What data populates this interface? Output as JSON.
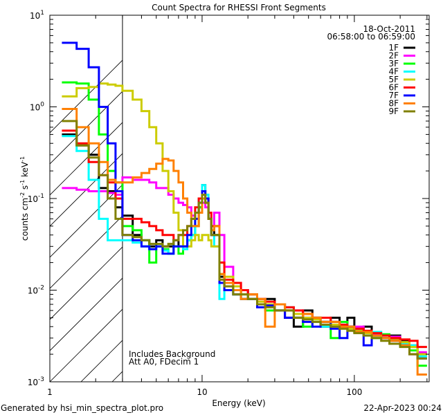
{
  "chart_data": {
    "type": "line",
    "title": "Count Spectra for RHESSI Front Segments",
    "xlabel": "Energy (keV)",
    "ylabel": "counts cm",
    "ylabel_parts": [
      "counts cm",
      "-2",
      " s",
      "-1",
      " keV",
      "-1"
    ],
    "xscale": "log",
    "yscale": "log",
    "xlim": [
      1,
      310
    ],
    "ylim": [
      0.001,
      10
    ],
    "x_ticks": [
      {
        "value": 1,
        "label": "1"
      },
      {
        "value": 10,
        "label": "10"
      },
      {
        "value": 100,
        "label": "100"
      }
    ],
    "y_ticks": [
      {
        "value": 10,
        "base": "10",
        "exp": "1"
      },
      {
        "value": 1,
        "base": "10",
        "exp": "0"
      },
      {
        "value": 0.1,
        "base": "10",
        "exp": "-1"
      },
      {
        "value": 0.01,
        "base": "10",
        "exp": "-2"
      },
      {
        "value": 0.001,
        "base": "10",
        "exp": "-3"
      }
    ],
    "hatched_region_keV": [
      1,
      3
    ],
    "legend_placement": "top-right",
    "date": "18-Oct-2011",
    "time_range": "06:58:00 to 06:59:00",
    "annotations": [
      "Includes Background",
      "Att A0, FDecim 1"
    ],
    "energy_edges": [
      1.2,
      1.5,
      1.8,
      2.1,
      2.4,
      2.7,
      3.0,
      3.5,
      4,
      4.5,
      5,
      5.5,
      6,
      6.5,
      7,
      7.5,
      8,
      8.5,
      9,
      9.5,
      10,
      10.5,
      11,
      11.5,
      12,
      13,
      14,
      16,
      18,
      20,
      23,
      26,
      30,
      35,
      40,
      46,
      53,
      60,
      70,
      80,
      90,
      100,
      115,
      130,
      150,
      170,
      200,
      230,
      260,
      300
    ],
    "series": [
      {
        "name": "1F",
        "color": "#000000",
        "values": [
          0.5,
          0.38,
          0.3,
          0.13,
          0.12,
          0.08,
          0.065,
          0.04,
          0.035,
          0.03,
          0.035,
          0.03,
          0.03,
          0.035,
          0.03,
          0.03,
          0.035,
          0.04,
          0.05,
          0.08,
          0.14,
          0.1,
          0.06,
          0.04,
          0.05,
          0.014,
          0.012,
          0.009,
          0.01,
          0.008,
          0.007,
          0.008,
          0.006,
          0.005,
          0.004,
          0.006,
          0.005,
          0.004,
          0.005,
          0.004,
          0.005,
          0.0038,
          0.004,
          0.0032,
          0.003,
          0.0032,
          0.0028,
          0.0024,
          0.002
        ]
      },
      {
        "name": "2F",
        "color": "#ff00ff",
        "values": [
          0.13,
          0.125,
          0.12,
          0.12,
          0.115,
          0.11,
          0.17,
          0.16,
          0.16,
          0.15,
          0.13,
          0.13,
          0.11,
          0.1,
          0.09,
          0.085,
          0.08,
          0.065,
          0.07,
          0.08,
          0.09,
          0.08,
          0.06,
          0.05,
          0.07,
          0.04,
          0.018,
          0.012,
          0.01,
          0.009,
          0.008,
          0.007,
          0.007,
          0.006,
          0.006,
          0.005,
          0.005,
          0.0045,
          0.0045,
          0.004,
          0.004,
          0.004,
          0.0035,
          0.0033,
          0.003,
          0.0031,
          0.0027,
          0.0025,
          0.0021
        ]
      },
      {
        "name": "3F",
        "color": "#00ff00",
        "values": [
          1.85,
          1.8,
          1.2,
          0.5,
          0.2,
          0.15,
          0.05,
          0.045,
          0.035,
          0.02,
          0.03,
          0.028,
          0.025,
          0.03,
          0.025,
          0.03,
          0.035,
          0.04,
          0.05,
          0.08,
          0.12,
          0.09,
          0.06,
          0.04,
          0.04,
          0.015,
          0.011,
          0.01,
          0.008,
          0.009,
          0.007,
          0.006,
          0.007,
          0.006,
          0.005,
          0.004,
          0.005,
          0.0045,
          0.003,
          0.0045,
          0.004,
          0.0035,
          0.0035,
          0.003,
          0.0033,
          0.0029,
          0.0027,
          0.0022,
          0.0015
        ]
      },
      {
        "name": "4F",
        "color": "#00ffff",
        "values": [
          0.48,
          0.33,
          0.16,
          0.06,
          0.035,
          0.035,
          0.035,
          0.033,
          0.03,
          0.028,
          0.03,
          0.027,
          0.025,
          0.03,
          0.03,
          0.028,
          0.035,
          0.04,
          0.06,
          0.1,
          0.14,
          0.11,
          0.06,
          0.04,
          0.03,
          0.008,
          0.011,
          0.009,
          0.009,
          0.008,
          0.007,
          0.007,
          0.006,
          0.0065,
          0.005,
          0.005,
          0.0045,
          0.004,
          0.0045,
          0.0042,
          0.0038,
          0.0036,
          0.0032,
          0.0035,
          0.003,
          0.0028,
          0.0026,
          0.0025,
          0.0019
        ]
      },
      {
        "name": "5F",
        "color": "#cccc00",
        "values": [
          1.3,
          1.6,
          1.65,
          1.8,
          1.75,
          1.7,
          1.5,
          1.2,
          0.9,
          0.6,
          0.4,
          0.2,
          0.12,
          0.07,
          0.045,
          0.03,
          0.03,
          0.035,
          0.04,
          0.035,
          0.04,
          0.04,
          0.035,
          0.03,
          0.03,
          0.02,
          0.014,
          0.011,
          0.009,
          0.008,
          0.0075,
          0.007,
          0.006,
          0.006,
          0.0055,
          0.005,
          0.0048,
          0.0045,
          0.0042,
          0.004,
          0.0038,
          0.0036,
          0.0034,
          0.0032,
          0.003,
          0.0029,
          0.0027,
          0.0024,
          0.002
        ]
      },
      {
        "name": "6F",
        "color": "#ff0000",
        "values": [
          0.55,
          0.4,
          0.25,
          0.18,
          0.15,
          0.1,
          0.06,
          0.06,
          0.055,
          0.05,
          0.045,
          0.04,
          0.04,
          0.035,
          0.04,
          0.04,
          0.05,
          0.06,
          0.08,
          0.1,
          0.12,
          0.1,
          0.07,
          0.05,
          0.05,
          0.02,
          0.013,
          0.012,
          0.01,
          0.009,
          0.008,
          0.0075,
          0.007,
          0.0065,
          0.006,
          0.0055,
          0.005,
          0.005,
          0.0045,
          0.0042,
          0.004,
          0.0038,
          0.0036,
          0.0034,
          0.0032,
          0.003,
          0.0029,
          0.0028,
          0.0024
        ]
      },
      {
        "name": "7F",
        "color": "#0000ff",
        "values": [
          5,
          4.3,
          2.7,
          1.0,
          0.4,
          0.12,
          0.04,
          0.035,
          0.03,
          0.028,
          0.03,
          0.025,
          0.025,
          0.03,
          0.03,
          0.03,
          0.04,
          0.05,
          0.06,
          0.09,
          0.12,
          0.1,
          0.06,
          0.04,
          0.04,
          0.012,
          0.01,
          0.009,
          0.008,
          0.008,
          0.0065,
          0.0068,
          0.006,
          0.005,
          0.005,
          0.0045,
          0.004,
          0.0045,
          0.0038,
          0.003,
          0.004,
          0.0035,
          0.0025,
          0.0032,
          0.003,
          0.0028,
          0.0025,
          0.002,
          0.0018
        ]
      },
      {
        "name": "8F",
        "color": "#ff8000",
        "values": [
          0.95,
          0.6,
          0.4,
          0.25,
          0.16,
          0.15,
          0.15,
          0.17,
          0.19,
          0.21,
          0.24,
          0.27,
          0.26,
          0.2,
          0.15,
          0.1,
          0.07,
          0.05,
          0.05,
          0.07,
          0.1,
          0.09,
          0.06,
          0.045,
          0.05,
          0.015,
          0.012,
          0.01,
          0.008,
          0.009,
          0.008,
          0.004,
          0.007,
          0.006,
          0.005,
          0.0055,
          0.005,
          0.0045,
          0.0045,
          0.004,
          0.004,
          0.0035,
          0.0035,
          0.0032,
          0.003,
          0.0028,
          0.0025,
          0.002,
          0.0012
        ]
      },
      {
        "name": "9F",
        "color": "#808000",
        "values": [
          0.7,
          0.38,
          0.28,
          0.18,
          0.1,
          0.06,
          0.04,
          0.038,
          0.035,
          0.032,
          0.032,
          0.03,
          0.032,
          0.035,
          0.04,
          0.045,
          0.05,
          0.06,
          0.07,
          0.09,
          0.11,
          0.09,
          0.06,
          0.04,
          0.04,
          0.013,
          0.011,
          0.009,
          0.009,
          0.008,
          0.007,
          0.0065,
          0.006,
          0.006,
          0.005,
          0.0048,
          0.0045,
          0.0042,
          0.004,
          0.0038,
          0.0036,
          0.0034,
          0.0032,
          0.003,
          0.0028,
          0.0026,
          0.0024,
          0.002,
          0.0018
        ]
      }
    ]
  },
  "footer": {
    "generated_by": "Generated by hsi_min_spectra_plot.pro",
    "timestamp": "22-Apr-2023 00:24"
  }
}
